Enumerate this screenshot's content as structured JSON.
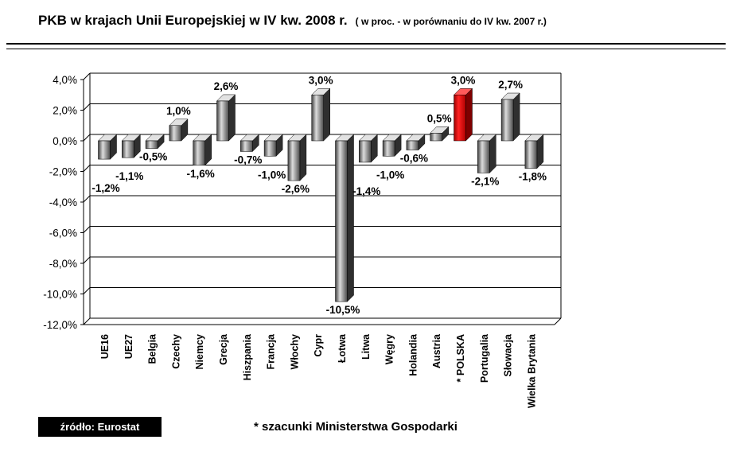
{
  "header": {
    "title": "PKB w krajach Unii Europejskiej w IV kw. 2008 r.",
    "subtitle": "( w proc. - w porównaniu do IV kw. 2007 r.)"
  },
  "chart_data": {
    "type": "bar",
    "projection": "3d-column",
    "title": "PKB w krajach Unii Europejskiej w IV kw. 2008 r. (w proc. - w porównaniu do IV kw. 2007 r.)",
    "categories": [
      "UE16",
      "UE27",
      "Belgia",
      "Czechy",
      "Niemcy",
      "Grecja",
      "Hiszpania",
      "Francja",
      "Włochy",
      "Cypr",
      "Łotwa",
      "Litwa",
      "Węgry",
      "Holandia",
      "Austria",
      "* POLSKA",
      "Portugalia",
      "Słowacja",
      "Wielka Brytania"
    ],
    "values": [
      -1.2,
      -1.1,
      -0.5,
      1.0,
      -1.6,
      2.6,
      -0.7,
      -1.0,
      -2.6,
      3.0,
      -10.5,
      -1.4,
      -1.0,
      -0.6,
      0.5,
      3.0,
      -2.1,
      2.7,
      -1.8
    ],
    "value_labels": [
      "-1,2%",
      "-1,1%",
      "-0,5%",
      "1,0%",
      "-1,6%",
      "2,6%",
      "-0,7%",
      "-1,0%",
      "-2,6%",
      "3,0%",
      "-10,5%",
      "-1,4%",
      "-1,0%",
      "-0,6%",
      "0,5%",
      "3,0%",
      "-2,1%",
      "2,7%",
      "-1,8%"
    ],
    "highlight": {
      "index": 15,
      "category": "* POLSKA",
      "color": "#dd0000"
    },
    "bar_color": "#8c8c8c",
    "ylim": [
      -12,
      4
    ],
    "ytick_step": 2,
    "yticks": [
      "4,0%",
      "2,0%",
      "0,0%",
      "-2,0%",
      "-4,0%",
      "-6,0%",
      "-8,0%",
      "-10,0%",
      "-12,0%"
    ],
    "grid": true,
    "legend": "none"
  },
  "footer": {
    "source": "źródło: Eurostat",
    "note": "* szacunki Ministerstwa Gospodarki"
  }
}
